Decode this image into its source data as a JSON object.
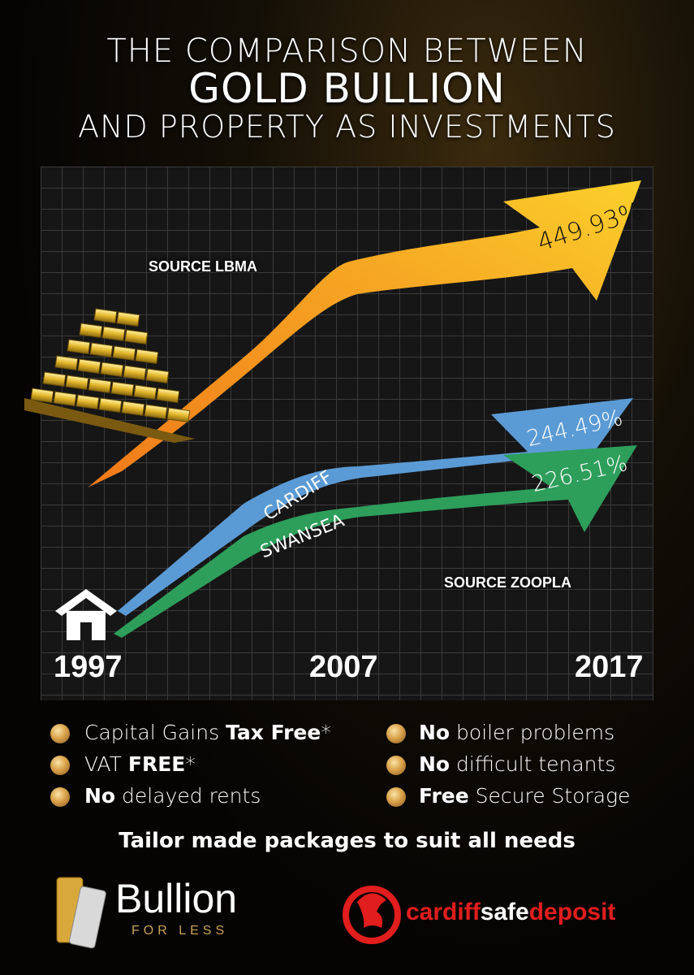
{
  "title": {
    "line1": "THE COMPARISON BETWEEN",
    "line2": "GOLD BULLION",
    "line3": "AND PROPERTY AS INVESTMENTS"
  },
  "chart": {
    "source_gold": "SOURCE LBMA",
    "source_property": "SOURCE ZOOPLA",
    "years": [
      "1997",
      "2007",
      "2017"
    ],
    "gold_pct": "449.93%",
    "cardiff_label": "CARDIFF",
    "cardiff_pct": "244.49%",
    "swansea_label": "SWANSEA",
    "swansea_pct": "226.51%",
    "colors": {
      "gold": "#f6a623",
      "cardiff": "#5b9bd5",
      "swansea": "#2e9e5b"
    }
  },
  "features": {
    "left": [
      {
        "pre": "Capital Gains ",
        "bold": "Tax Free",
        "post": "*"
      },
      {
        "pre": "VAT ",
        "bold": "FREE",
        "post": "*"
      },
      {
        "pre": "",
        "bold": "No",
        "post": " delayed rents"
      }
    ],
    "right": [
      {
        "pre": "",
        "bold": "No",
        "post": " boiler problems"
      },
      {
        "pre": "",
        "bold": "No",
        "post": " difficult tenants"
      },
      {
        "pre": "",
        "bold": "Free",
        "post": " Secure Storage"
      }
    ]
  },
  "tagline": "Tailor made packages to suit all needs",
  "logos": {
    "bullion_word": "Bullion",
    "bullion_sub": "FOR LESS",
    "csd_part1": "cardiff",
    "csd_part2": "safe",
    "csd_part3": "deposit"
  },
  "icons": [
    "gold-bars-icon",
    "house-icon",
    "coin-icon",
    "dragon-icon"
  ]
}
